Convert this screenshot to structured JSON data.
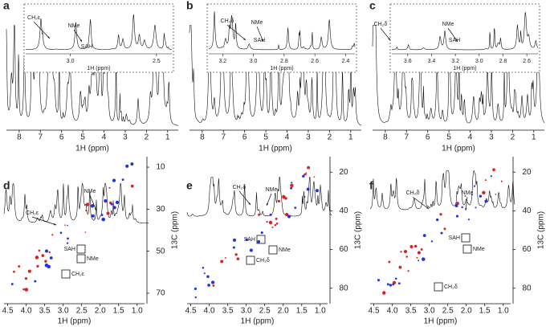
{
  "panels": [
    {
      "label": "a",
      "xlabel": "1H (ppm)",
      "xlim": [
        8.6,
        0.5
      ],
      "xticks": [
        8,
        7,
        6,
        5,
        4,
        3,
        2,
        1
      ],
      "inset": {
        "xlabel": "1H (ppm)",
        "xlim": [
          3.25,
          2.42
        ],
        "xticks": [
          {
            "value": 3,
            "label": "3.0"
          },
          2.5
        ],
        "annotations": [
          "CH₂ε",
          "NMe",
          "SAH"
        ]
      }
    },
    {
      "label": "b",
      "xlabel": "1H (ppm)",
      "xlim": [
        8.6,
        0.5
      ],
      "xticks": [
        8,
        7,
        6,
        5,
        4,
        3,
        2,
        1
      ],
      "inset": {
        "xlabel": "1H (ppm)",
        "xlim": [
          3.28,
          2.35
        ],
        "xticks": [
          3.2,
          {
            "value": 3,
            "label": "3.0"
          },
          2.8,
          2.6,
          2.4
        ],
        "annotations": [
          "CH₂δ",
          "NMe",
          "SAH"
        ]
      }
    },
    {
      "label": "c",
      "xlabel": "1H (ppm)",
      "xlim": [
        8.6,
        0.5
      ],
      "xticks": [
        8,
        7,
        6,
        5,
        4,
        3,
        2,
        1
      ],
      "inset": {
        "xlabel": "1H (ppm)",
        "xlim": [
          3.72,
          2.52
        ],
        "xticks": [
          3.6,
          3.4,
          3.2,
          {
            "value": 3,
            "label": "3.0"
          },
          2.8,
          2.6
        ],
        "annotations": [
          "CH₂δ",
          "NMe",
          "SAH"
        ]
      }
    },
    {
      "label": "d",
      "xlabel": "1H (ppm)",
      "ylabel": "13C (ppm)",
      "xlim": [
        4.6,
        0.8
      ],
      "xticks": [
        4.5,
        {
          "value": 4,
          "label": "4.0"
        },
        3.5,
        {
          "value": 3,
          "label": "3.0"
        },
        2.5,
        {
          "value": 2,
          "label": "2.0"
        },
        1.5,
        {
          "value": 1,
          "label": "1.0"
        }
      ],
      "ylim": [
        5,
        75
      ],
      "yticks": [
        10,
        30,
        50,
        70
      ],
      "spectrum_annotations": [
        "CH₂ε",
        "NMe"
      ],
      "box_labels": [
        "SAH",
        "NMe",
        "CH₂ε"
      ]
    },
    {
      "label": "e",
      "xlabel": "1H (ppm)",
      "ylabel": "13C (ppm)",
      "xlim": [
        4.6,
        0.8
      ],
      "xticks": [
        4.5,
        {
          "value": 4,
          "label": "4.0"
        },
        3.5,
        {
          "value": 3,
          "label": "3.0"
        },
        2.5,
        {
          "value": 2,
          "label": "2.0"
        },
        1.5,
        {
          "value": 1,
          "label": "1.0"
        }
      ],
      "ylim": [
        12,
        88
      ],
      "yticks": [
        20,
        40,
        60,
        80
      ],
      "spectrum_annotations": [
        "CH₂δ",
        "NMe"
      ],
      "box_labels": [
        "SAH",
        "NMe",
        "CH₂δ"
      ]
    },
    {
      "label": "f",
      "xlabel": "1H (ppm)",
      "ylabel": "13C (ppm)",
      "xlim": [
        4.6,
        0.8
      ],
      "xticks": [
        4.5,
        {
          "value": 4,
          "label": "4.0"
        },
        3.5,
        {
          "value": 3,
          "label": "3.0"
        },
        2.5,
        {
          "value": 2,
          "label": "2.0"
        },
        1.5,
        {
          "value": 1,
          "label": "1.0"
        }
      ],
      "ylim": [
        12,
        88
      ],
      "yticks": [
        20,
        40,
        60,
        80
      ],
      "spectrum_annotations": [
        "CH₂δ",
        "NMe"
      ],
      "box_labels": [
        "SAH",
        "NMe",
        "CH₂δ"
      ]
    }
  ]
}
